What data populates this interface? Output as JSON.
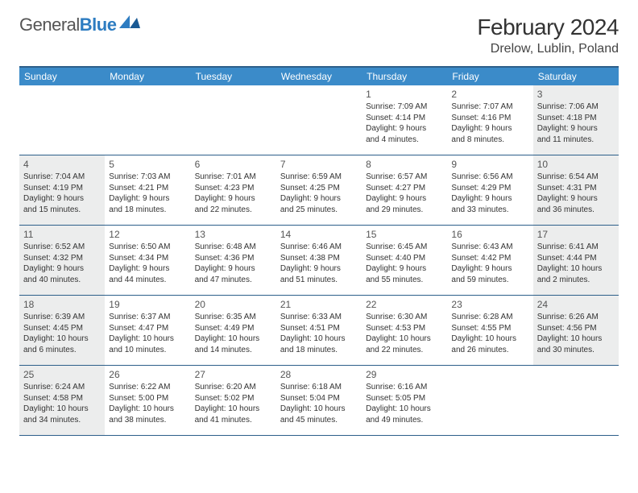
{
  "logo": {
    "part1": "General",
    "part2": "Blue"
  },
  "title": "February 2024",
  "location": "Drelow, Lublin, Poland",
  "colors": {
    "header_bg": "#3b8bc9",
    "rule": "#2d5f8a",
    "shaded": "#eceded",
    "logo_blue": "#2d7cc1"
  },
  "day_names": [
    "Sunday",
    "Monday",
    "Tuesday",
    "Wednesday",
    "Thursday",
    "Friday",
    "Saturday"
  ],
  "weeks": [
    [
      {
        "empty": true
      },
      {
        "empty": true
      },
      {
        "empty": true
      },
      {
        "empty": true
      },
      {
        "num": "1",
        "sunrise": "Sunrise: 7:09 AM",
        "sunset": "Sunset: 4:14 PM",
        "daylight1": "Daylight: 9 hours",
        "daylight2": "and 4 minutes."
      },
      {
        "num": "2",
        "sunrise": "Sunrise: 7:07 AM",
        "sunset": "Sunset: 4:16 PM",
        "daylight1": "Daylight: 9 hours",
        "daylight2": "and 8 minutes."
      },
      {
        "num": "3",
        "sunrise": "Sunrise: 7:06 AM",
        "sunset": "Sunset: 4:18 PM",
        "daylight1": "Daylight: 9 hours",
        "daylight2": "and 11 minutes.",
        "shaded": true
      }
    ],
    [
      {
        "num": "4",
        "sunrise": "Sunrise: 7:04 AM",
        "sunset": "Sunset: 4:19 PM",
        "daylight1": "Daylight: 9 hours",
        "daylight2": "and 15 minutes.",
        "shaded": true
      },
      {
        "num": "5",
        "sunrise": "Sunrise: 7:03 AM",
        "sunset": "Sunset: 4:21 PM",
        "daylight1": "Daylight: 9 hours",
        "daylight2": "and 18 minutes."
      },
      {
        "num": "6",
        "sunrise": "Sunrise: 7:01 AM",
        "sunset": "Sunset: 4:23 PM",
        "daylight1": "Daylight: 9 hours",
        "daylight2": "and 22 minutes."
      },
      {
        "num": "7",
        "sunrise": "Sunrise: 6:59 AM",
        "sunset": "Sunset: 4:25 PM",
        "daylight1": "Daylight: 9 hours",
        "daylight2": "and 25 minutes."
      },
      {
        "num": "8",
        "sunrise": "Sunrise: 6:57 AM",
        "sunset": "Sunset: 4:27 PM",
        "daylight1": "Daylight: 9 hours",
        "daylight2": "and 29 minutes."
      },
      {
        "num": "9",
        "sunrise": "Sunrise: 6:56 AM",
        "sunset": "Sunset: 4:29 PM",
        "daylight1": "Daylight: 9 hours",
        "daylight2": "and 33 minutes."
      },
      {
        "num": "10",
        "sunrise": "Sunrise: 6:54 AM",
        "sunset": "Sunset: 4:31 PM",
        "daylight1": "Daylight: 9 hours",
        "daylight2": "and 36 minutes.",
        "shaded": true
      }
    ],
    [
      {
        "num": "11",
        "sunrise": "Sunrise: 6:52 AM",
        "sunset": "Sunset: 4:32 PM",
        "daylight1": "Daylight: 9 hours",
        "daylight2": "and 40 minutes.",
        "shaded": true
      },
      {
        "num": "12",
        "sunrise": "Sunrise: 6:50 AM",
        "sunset": "Sunset: 4:34 PM",
        "daylight1": "Daylight: 9 hours",
        "daylight2": "and 44 minutes."
      },
      {
        "num": "13",
        "sunrise": "Sunrise: 6:48 AM",
        "sunset": "Sunset: 4:36 PM",
        "daylight1": "Daylight: 9 hours",
        "daylight2": "and 47 minutes."
      },
      {
        "num": "14",
        "sunrise": "Sunrise: 6:46 AM",
        "sunset": "Sunset: 4:38 PM",
        "daylight1": "Daylight: 9 hours",
        "daylight2": "and 51 minutes."
      },
      {
        "num": "15",
        "sunrise": "Sunrise: 6:45 AM",
        "sunset": "Sunset: 4:40 PM",
        "daylight1": "Daylight: 9 hours",
        "daylight2": "and 55 minutes."
      },
      {
        "num": "16",
        "sunrise": "Sunrise: 6:43 AM",
        "sunset": "Sunset: 4:42 PM",
        "daylight1": "Daylight: 9 hours",
        "daylight2": "and 59 minutes."
      },
      {
        "num": "17",
        "sunrise": "Sunrise: 6:41 AM",
        "sunset": "Sunset: 4:44 PM",
        "daylight1": "Daylight: 10 hours",
        "daylight2": "and 2 minutes.",
        "shaded": true
      }
    ],
    [
      {
        "num": "18",
        "sunrise": "Sunrise: 6:39 AM",
        "sunset": "Sunset: 4:45 PM",
        "daylight1": "Daylight: 10 hours",
        "daylight2": "and 6 minutes.",
        "shaded": true
      },
      {
        "num": "19",
        "sunrise": "Sunrise: 6:37 AM",
        "sunset": "Sunset: 4:47 PM",
        "daylight1": "Daylight: 10 hours",
        "daylight2": "and 10 minutes."
      },
      {
        "num": "20",
        "sunrise": "Sunrise: 6:35 AM",
        "sunset": "Sunset: 4:49 PM",
        "daylight1": "Daylight: 10 hours",
        "daylight2": "and 14 minutes."
      },
      {
        "num": "21",
        "sunrise": "Sunrise: 6:33 AM",
        "sunset": "Sunset: 4:51 PM",
        "daylight1": "Daylight: 10 hours",
        "daylight2": "and 18 minutes."
      },
      {
        "num": "22",
        "sunrise": "Sunrise: 6:30 AM",
        "sunset": "Sunset: 4:53 PM",
        "daylight1": "Daylight: 10 hours",
        "daylight2": "and 22 minutes."
      },
      {
        "num": "23",
        "sunrise": "Sunrise: 6:28 AM",
        "sunset": "Sunset: 4:55 PM",
        "daylight1": "Daylight: 10 hours",
        "daylight2": "and 26 minutes."
      },
      {
        "num": "24",
        "sunrise": "Sunrise: 6:26 AM",
        "sunset": "Sunset: 4:56 PM",
        "daylight1": "Daylight: 10 hours",
        "daylight2": "and 30 minutes.",
        "shaded": true
      }
    ],
    [
      {
        "num": "25",
        "sunrise": "Sunrise: 6:24 AM",
        "sunset": "Sunset: 4:58 PM",
        "daylight1": "Daylight: 10 hours",
        "daylight2": "and 34 minutes.",
        "shaded": true
      },
      {
        "num": "26",
        "sunrise": "Sunrise: 6:22 AM",
        "sunset": "Sunset: 5:00 PM",
        "daylight1": "Daylight: 10 hours",
        "daylight2": "and 38 minutes."
      },
      {
        "num": "27",
        "sunrise": "Sunrise: 6:20 AM",
        "sunset": "Sunset: 5:02 PM",
        "daylight1": "Daylight: 10 hours",
        "daylight2": "and 41 minutes."
      },
      {
        "num": "28",
        "sunrise": "Sunrise: 6:18 AM",
        "sunset": "Sunset: 5:04 PM",
        "daylight1": "Daylight: 10 hours",
        "daylight2": "and 45 minutes."
      },
      {
        "num": "29",
        "sunrise": "Sunrise: 6:16 AM",
        "sunset": "Sunset: 5:05 PM",
        "daylight1": "Daylight: 10 hours",
        "daylight2": "and 49 minutes."
      },
      {
        "empty": true
      },
      {
        "empty": true
      }
    ]
  ]
}
